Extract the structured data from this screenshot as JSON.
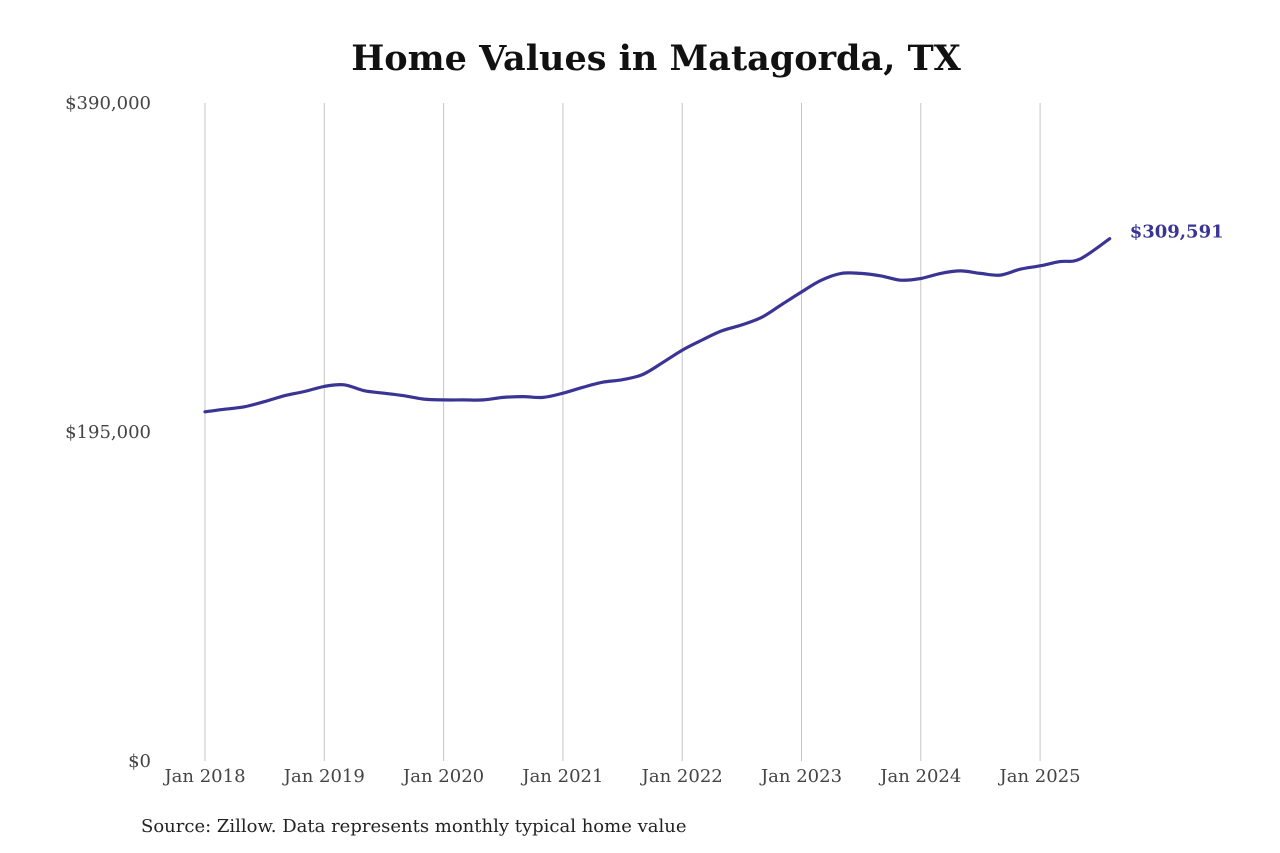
{
  "chart_data": {
    "type": "line",
    "title": "Home Values in Matagorda, TX",
    "source_note": "Source: Zillow. Data represents monthly typical home value",
    "x_tick_labels": [
      "Jan 2018",
      "Jan 2019",
      "Jan 2020",
      "Jan 2021",
      "Jan 2022",
      "Jan 2023",
      "Jan 2024",
      "Jan 2025"
    ],
    "y_tick_labels": [
      "$390,000",
      "$195,000",
      "$0"
    ],
    "y_tick_values": [
      390000,
      195000,
      0
    ],
    "ylim": [
      0,
      390000
    ],
    "xlim": [
      "2018-01",
      "2025-08"
    ],
    "grid": {
      "vertical": true,
      "horizontal": false
    },
    "line_color": "#3a3494",
    "end_label": "$309,591",
    "series": [
      {
        "x": [
          "2018-01",
          "2018-03",
          "2018-05",
          "2018-07",
          "2018-09",
          "2018-11",
          "2019-01",
          "2019-03",
          "2019-05",
          "2019-07",
          "2019-09",
          "2019-11",
          "2020-01",
          "2020-03",
          "2020-05",
          "2020-07",
          "2020-09",
          "2020-11",
          "2021-01",
          "2021-03",
          "2021-05",
          "2021-07",
          "2021-09",
          "2021-11",
          "2022-01",
          "2022-03",
          "2022-05",
          "2022-07",
          "2022-09",
          "2022-11",
          "2023-01",
          "2023-03",
          "2023-05",
          "2023-07",
          "2023-09",
          "2023-11",
          "2024-01",
          "2024-03",
          "2024-05",
          "2024-07",
          "2024-09",
          "2024-11",
          "2025-01",
          "2025-03",
          "2025-05",
          "2025-08"
        ],
        "values": [
          207000,
          208500,
          210000,
          213000,
          216500,
          219000,
          222000,
          223000,
          219500,
          218000,
          216500,
          214500,
          214000,
          214000,
          214000,
          215500,
          216000,
          215500,
          218000,
          221500,
          224500,
          226000,
          229000,
          236000,
          243500,
          249500,
          255000,
          258500,
          263000,
          270500,
          278000,
          285000,
          289000,
          289000,
          287500,
          285000,
          286000,
          289000,
          290500,
          289000,
          288000,
          291500,
          293500,
          296000,
          297500,
          309591
        ]
      }
    ]
  }
}
